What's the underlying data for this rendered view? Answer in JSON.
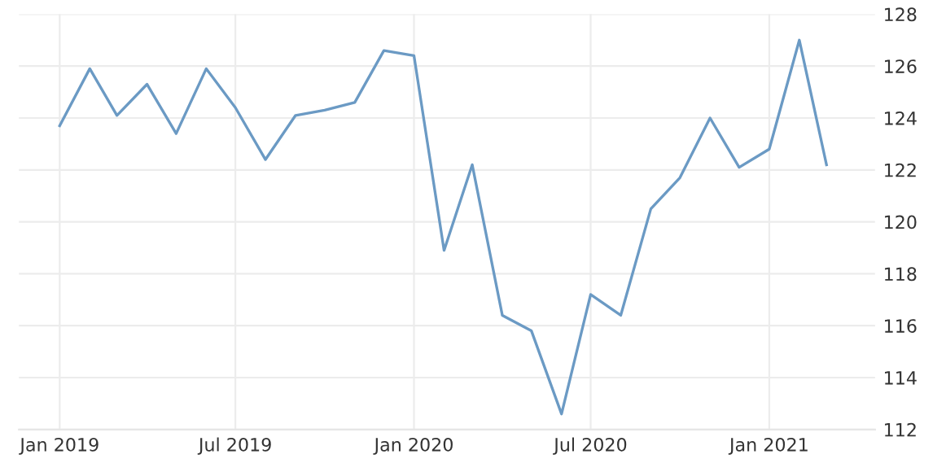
{
  "chart_data": {
    "type": "line",
    "x": [
      "2019-01",
      "2019-02",
      "2019-03",
      "2019-04",
      "2019-05",
      "2019-06",
      "2019-07",
      "2019-08",
      "2019-09",
      "2019-10",
      "2019-11",
      "2019-12",
      "2020-01",
      "2020-02",
      "2020-03",
      "2020-04",
      "2020-05",
      "2020-06",
      "2020-07",
      "2020-08",
      "2020-09",
      "2020-10",
      "2020-11",
      "2020-12",
      "2021-01",
      "2021-02",
      "2021-03"
    ],
    "series": [
      {
        "color": "#6b9ac4",
        "values": [
          123.7,
          125.9,
          124.1,
          125.3,
          123.4,
          125.9,
          124.4,
          122.4,
          124.1,
          124.3,
          124.6,
          126.6,
          126.4,
          118.9,
          122.2,
          116.4,
          115.8,
          112.6,
          117.2,
          116.4,
          120.5,
          121.7,
          124.0,
          122.1,
          122.8,
          127.0,
          122.2
        ]
      }
    ],
    "xlim": [
      "2018-11-20",
      "2021-04-20"
    ],
    "xticks": [
      {
        "value": "2019-01",
        "label": "Jan 2019"
      },
      {
        "value": "2019-07",
        "label": "Jul 2019"
      },
      {
        "value": "2020-01",
        "label": "Jan 2020"
      },
      {
        "value": "2020-07",
        "label": "Jul 2020"
      },
      {
        "value": "2021-01",
        "label": "Jan 2021"
      }
    ],
    "ylim": [
      112,
      128
    ],
    "yticks": [
      112,
      114,
      116,
      118,
      120,
      122,
      124,
      126,
      128
    ],
    "grid": true,
    "legend": false,
    "marker": "none",
    "line_style": "solid"
  }
}
